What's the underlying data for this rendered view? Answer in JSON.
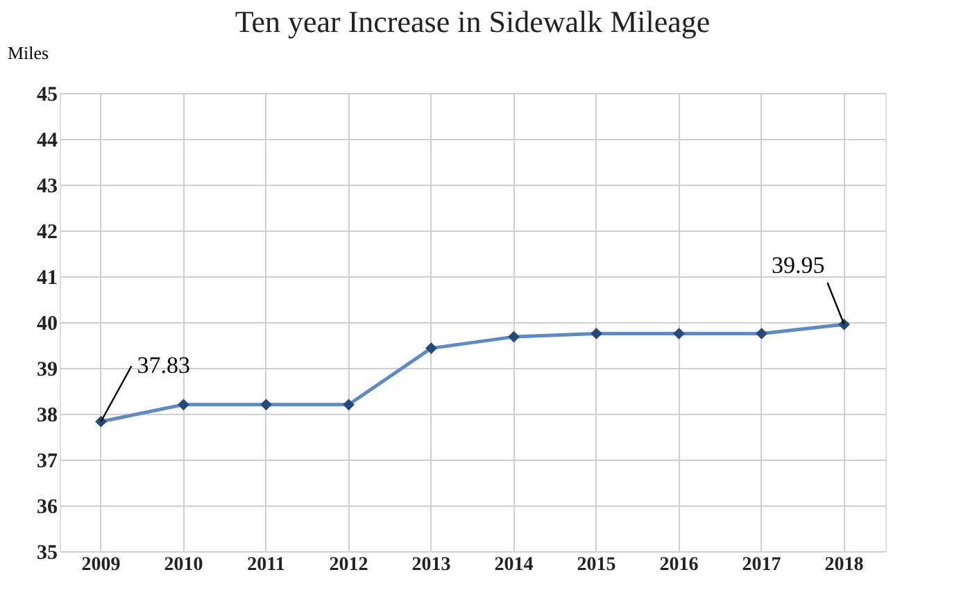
{
  "chart_data": {
    "type": "line",
    "title": "Ten year Increase in Sidewalk Mileage",
    "ylabel": "Miles",
    "categories": [
      "2009",
      "2010",
      "2011",
      "2012",
      "2013",
      "2014",
      "2015",
      "2016",
      "2017",
      "2018"
    ],
    "series": [
      {
        "color": "#5b8ac6",
        "values": [
          37.83,
          38.2,
          38.2,
          38.2,
          39.43,
          39.68,
          39.75,
          39.75,
          39.75,
          39.95
        ]
      }
    ],
    "ylim": [
      35,
      45
    ],
    "yticks": [
      35,
      36,
      37,
      38,
      39,
      40,
      41,
      42,
      43,
      44,
      45
    ],
    "annotations": [
      {
        "text": "37.83",
        "x": "2009",
        "y": 37.83
      },
      {
        "text": "39.95",
        "x": "2018",
        "y": 39.95
      }
    ],
    "marker": "diamond",
    "grid": true
  }
}
